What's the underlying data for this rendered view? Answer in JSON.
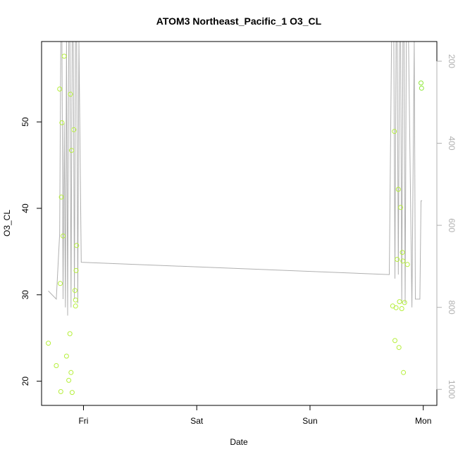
{
  "chart_data": {
    "type": "scatter",
    "title": "ATOM3 Northeast_Pacific_1 O3_CL",
    "xlabel": "Date",
    "ylabel": "O3_CL",
    "x_ticks": [
      {
        "label": "Fri",
        "value": 0.0
      },
      {
        "label": "Sat",
        "value": 1.0
      },
      {
        "label": "Sun",
        "value": 2.0
      },
      {
        "label": "Mon",
        "value": 3.0
      }
    ],
    "xlim": [
      -0.37,
      3.12
    ],
    "y_ticks": [
      20,
      30,
      40,
      50
    ],
    "ylim": [
      17.2,
      59.3
    ],
    "y2_ticks": [
      200,
      400,
      600,
      800,
      1000
    ],
    "y2lim": [
      1039,
      152
    ],
    "grid": false,
    "colors": {
      "points": "#b5ef3a",
      "points_right": "#8ee83a",
      "line": "#b0b0b0",
      "axis": "#000000",
      "right_axis": "#b0b0b0"
    },
    "series": [
      {
        "kind": "points",
        "x": [
          -0.31,
          -0.24,
          -0.21,
          -0.205,
          -0.2,
          -0.195,
          -0.19,
          -0.18,
          -0.17,
          -0.15,
          -0.13,
          -0.12,
          -0.115,
          -0.11,
          -0.105,
          -0.1,
          -0.085,
          -0.075,
          -0.07,
          -0.07,
          -0.065,
          -0.06,
          2.73,
          2.745,
          2.75,
          2.76,
          2.77,
          2.78,
          2.785,
          2.79,
          2.8,
          2.81,
          2.815,
          2.82,
          2.825,
          2.835,
          2.86,
          2.98,
          2.985
        ],
        "y": [
          24.4,
          21.8,
          53.8,
          31.3,
          18.8,
          41.3,
          49.9,
          36.8,
          57.6,
          22.9,
          20.1,
          25.5,
          53.2,
          21.0,
          46.7,
          18.7,
          49.1,
          30.5,
          29.4,
          28.7,
          32.8,
          35.7,
          28.7,
          48.9,
          24.7,
          28.5,
          34.1,
          42.2,
          23.9,
          29.2,
          40.1,
          28.4,
          34.9,
          33.9,
          21.0,
          29.1,
          33.5,
          54.5,
          53.9
        ]
      },
      {
        "kind": "line",
        "axis": "right",
        "x": [
          -0.31,
          -0.24,
          -0.21,
          -0.2,
          -0.19,
          -0.18,
          -0.17,
          -0.16,
          -0.15,
          -0.14,
          -0.13,
          -0.12,
          -0.11,
          -0.1,
          -0.09,
          -0.08,
          -0.07,
          -0.06,
          -0.05,
          -0.04,
          -0.02,
          2.7,
          2.72,
          2.74,
          2.75,
          2.76,
          2.77,
          2.78,
          2.79,
          2.8,
          2.81,
          2.82,
          2.83,
          2.84,
          2.85,
          2.87,
          2.9,
          2.92,
          2.93,
          2.95,
          2.97,
          2.98,
          2.99
        ],
        "y": [
          760,
          780,
          620,
          150,
          150,
          780,
          350,
          800,
          150,
          820,
          150,
          150,
          800,
          150,
          150,
          780,
          150,
          150,
          790,
          150,
          690,
          720,
          150,
          150,
          730,
          150,
          150,
          720,
          150,
          150,
          790,
          150,
          150,
          790,
          150,
          150,
          800,
          150,
          780,
          780,
          780,
          540,
          540
        ]
      }
    ]
  }
}
